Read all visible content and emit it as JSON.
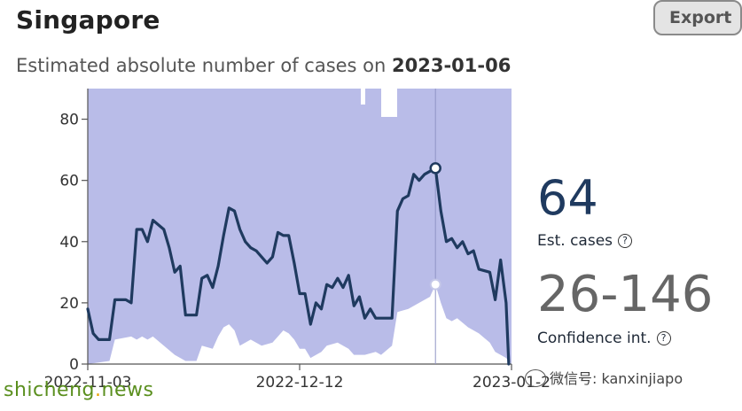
{
  "header": {
    "title": "Singapore",
    "subtitle_prefix": "Estimated absolute number of cases on ",
    "subtitle_date": "2023-01-06",
    "export_label": "Export"
  },
  "stats": {
    "est_value": "64",
    "est_label": "Est. cases",
    "ci_value": "26-146",
    "ci_label": "Confidence int."
  },
  "watermarks": {
    "left_a": "shicheng",
    "left_dot": ".",
    "left_b": "news",
    "right": "微信号: kanxinjiapo"
  },
  "colors": {
    "band": "#b9bce8",
    "line": "#1f3a5f",
    "axis": "#555555",
    "text": "#333333"
  },
  "chart_data": {
    "type": "line",
    "title": "",
    "xlabel": "",
    "ylabel": "",
    "x_start": "2022-11-03",
    "x_ticks": [
      "2022-11-03",
      "2022-12-12",
      "2023-01-2"
    ],
    "x_tick_days": [
      0,
      39,
      78
    ],
    "xlim_days": [
      0,
      78
    ],
    "y_ticks": [
      0,
      20,
      40,
      60,
      80
    ],
    "ylim": [
      0,
      90
    ],
    "selected": {
      "date": "2023-01-06",
      "day": 64,
      "value": 64,
      "lower": 26
    },
    "series": [
      {
        "role": "estimate",
        "points": [
          [
            0,
            18
          ],
          [
            1,
            10
          ],
          [
            2,
            8
          ],
          [
            4,
            8
          ],
          [
            5,
            21
          ],
          [
            7,
            21
          ],
          [
            8,
            20
          ],
          [
            9,
            44
          ],
          [
            10,
            44
          ],
          [
            11,
            40
          ],
          [
            12,
            47
          ],
          [
            14,
            44
          ],
          [
            15,
            38
          ],
          [
            16,
            30
          ],
          [
            17,
            32
          ],
          [
            18,
            16
          ],
          [
            20,
            16
          ],
          [
            21,
            28
          ],
          [
            22,
            29
          ],
          [
            23,
            25
          ],
          [
            24,
            32
          ],
          [
            25,
            42
          ],
          [
            26,
            51
          ],
          [
            27,
            50
          ],
          [
            28,
            44
          ],
          [
            29,
            40
          ],
          [
            30,
            38
          ],
          [
            31,
            37
          ],
          [
            32,
            35
          ],
          [
            33,
            33
          ],
          [
            34,
            35
          ],
          [
            35,
            43
          ],
          [
            36,
            42
          ],
          [
            37,
            42
          ],
          [
            38,
            33
          ],
          [
            39,
            23
          ],
          [
            40,
            23
          ],
          [
            41,
            13
          ],
          [
            42,
            20
          ],
          [
            43,
            18
          ],
          [
            44,
            26
          ],
          [
            45,
            25
          ],
          [
            46,
            28
          ],
          [
            47,
            25
          ],
          [
            48,
            29
          ],
          [
            49,
            19
          ],
          [
            50,
            22
          ],
          [
            51,
            15
          ],
          [
            52,
            18
          ],
          [
            53,
            15
          ],
          [
            56,
            15
          ],
          [
            57,
            50
          ],
          [
            58,
            54
          ],
          [
            59,
            55
          ],
          [
            60,
            62
          ],
          [
            61,
            60
          ],
          [
            62,
            62
          ],
          [
            63,
            63
          ],
          [
            64,
            64
          ],
          [
            65,
            50
          ],
          [
            66,
            40
          ],
          [
            67,
            41
          ],
          [
            68,
            38
          ],
          [
            69,
            40
          ],
          [
            70,
            36
          ],
          [
            71,
            37
          ],
          [
            72,
            31
          ],
          [
            74,
            30
          ],
          [
            75,
            21
          ],
          [
            76,
            34
          ],
          [
            77,
            20
          ],
          [
            77.5,
            0
          ]
        ]
      },
      {
        "role": "lower",
        "points": [
          [
            0,
            0
          ],
          [
            4,
            1
          ],
          [
            5,
            8
          ],
          [
            8,
            9
          ],
          [
            9,
            8
          ],
          [
            10,
            9
          ],
          [
            11,
            8
          ],
          [
            12,
            9
          ],
          [
            14,
            6
          ],
          [
            16,
            3
          ],
          [
            18,
            1
          ],
          [
            20,
            1
          ],
          [
            21,
            6
          ],
          [
            23,
            5
          ],
          [
            24,
            9
          ],
          [
            25,
            12
          ],
          [
            26,
            13
          ],
          [
            27,
            11
          ],
          [
            28,
            6
          ],
          [
            30,
            8
          ],
          [
            32,
            6
          ],
          [
            34,
            7
          ],
          [
            36,
            11
          ],
          [
            37,
            10
          ],
          [
            38,
            8
          ],
          [
            39,
            5
          ],
          [
            40,
            5
          ],
          [
            41,
            2
          ],
          [
            43,
            4
          ],
          [
            44,
            6
          ],
          [
            46,
            7
          ],
          [
            48,
            5
          ],
          [
            49,
            3
          ],
          [
            51,
            3
          ],
          [
            53,
            4
          ],
          [
            54,
            3
          ],
          [
            56,
            6
          ],
          [
            57,
            17
          ],
          [
            59,
            18
          ],
          [
            61,
            20
          ],
          [
            63,
            22
          ],
          [
            64,
            26
          ],
          [
            65,
            20
          ],
          [
            66,
            15
          ],
          [
            67,
            14
          ],
          [
            68,
            15
          ],
          [
            70,
            12
          ],
          [
            72,
            10
          ],
          [
            74,
            7
          ],
          [
            75,
            4
          ],
          [
            76,
            3
          ],
          [
            77,
            2
          ],
          [
            78,
            0
          ]
        ]
      }
    ]
  }
}
